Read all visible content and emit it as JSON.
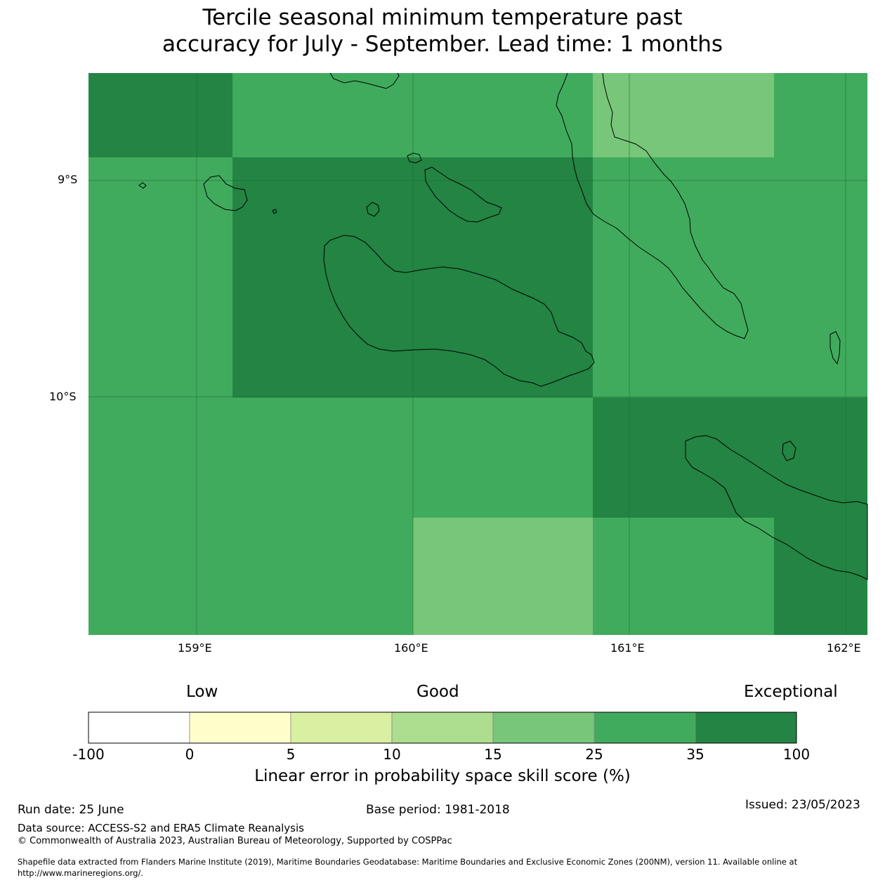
{
  "title_line1": "Tercile seasonal minimum temperature past",
  "title_line2": "accuracy for July - September. Lead time: 1 months",
  "map": {
    "lat_labels": [
      "9°S",
      "10°S"
    ],
    "lon_labels": [
      "159°E",
      "160°E",
      "161°E",
      "162°E"
    ],
    "colors": {
      "dark": "#238443",
      "mid": "#41ab5d",
      "light": "#78c679",
      "coast": "#000000",
      "grid": "#1e6e36"
    }
  },
  "colorbar": {
    "category_low": "Low",
    "category_good": "Good",
    "category_exceptional": "Exceptional",
    "ticks": [
      "-100",
      "0",
      "5",
      "10",
      "15",
      "25",
      "35",
      "100"
    ],
    "colors": [
      "#ffffff",
      "#ffffcc",
      "#d9f0a3",
      "#addd8e",
      "#78c679",
      "#41ab5d",
      "#238443"
    ],
    "label": "Linear error in probability space skill score (%)"
  },
  "footer": {
    "run_date": "Run date: 25 June",
    "base_period": "Base period: 1981-2018",
    "issued": "Issued: 23/05/2023",
    "data_source": "Data source: ACCESS-S2 and ERA5 Climate Reanalysis",
    "copyright": "© Commonwealth of Australia 2023, Australian Bureau of Meteorology, Supported by COSPPac",
    "shapefile_line1": "Shapefile data extracted from Flanders Marine Institute (2019), Maritime Boundaries Geodatabase: Maritime Boundaries and Exclusive Economic Zones (200NM), version 11. Available online at",
    "shapefile_line2": "http://www.marineregions.org/."
  }
}
